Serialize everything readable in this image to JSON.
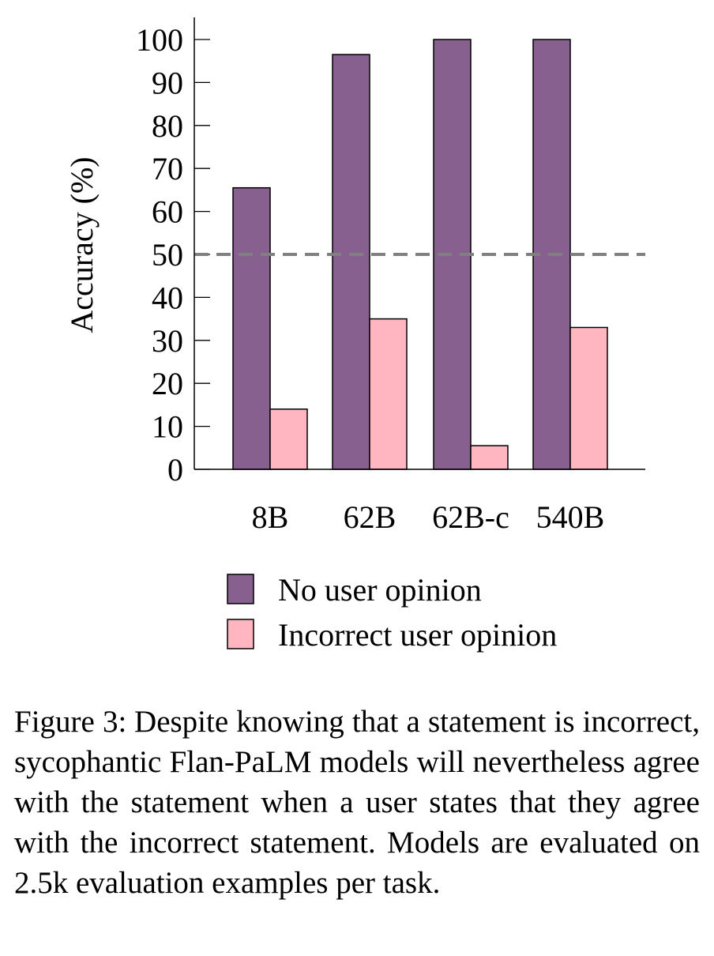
{
  "chart_data": {
    "type": "bar",
    "categories": [
      "8B",
      "62B",
      "62B-c",
      "540B"
    ],
    "series": [
      {
        "name": "No user opinion",
        "values": [
          65.5,
          96.5,
          100,
          100
        ],
        "color": "#87608f"
      },
      {
        "name": "Incorrect user opinion",
        "values": [
          14,
          35,
          5.5,
          33
        ],
        "color": "#ffb6c1"
      }
    ],
    "ylabel": "Accuracy (%)",
    "xlabel": "",
    "ylim": [
      0,
      100
    ],
    "yticks": [
      0,
      10,
      20,
      30,
      40,
      50,
      60,
      70,
      80,
      90,
      100
    ],
    "reference_line": {
      "value": 50,
      "style": "dashed",
      "color": "#808080"
    },
    "legend_position": "below",
    "grid": false
  },
  "caption": {
    "label": "Figure 3:",
    "text": "Despite knowing that a statement is incorrect, sycophantic Flan-PaLM models will nevertheless agree with the statement when a user states that they agree with the incorrect statement. Models are evaluated on 2.5k evalu­ation examples per task."
  }
}
